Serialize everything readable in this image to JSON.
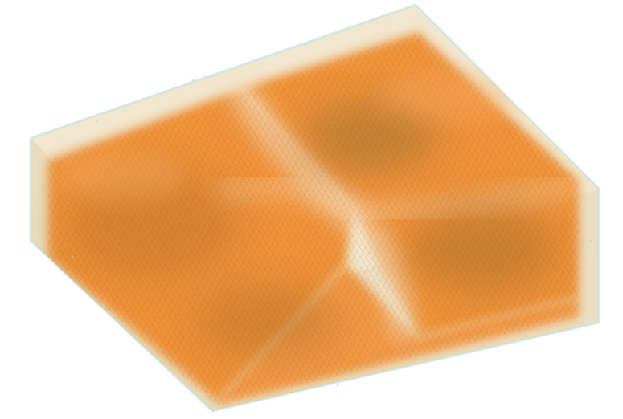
{
  "image": {
    "subject": "volume-render-slab",
    "colors": {
      "background": "#ffffff",
      "shell": "#e9dcc0",
      "shell_edge": "#bfe3dc",
      "core": "#f08a2a",
      "core_light": "#f4a556",
      "core_dark": "#b9702a",
      "dense": "#8c6a2a",
      "gap": "#f6e2c6"
    }
  }
}
